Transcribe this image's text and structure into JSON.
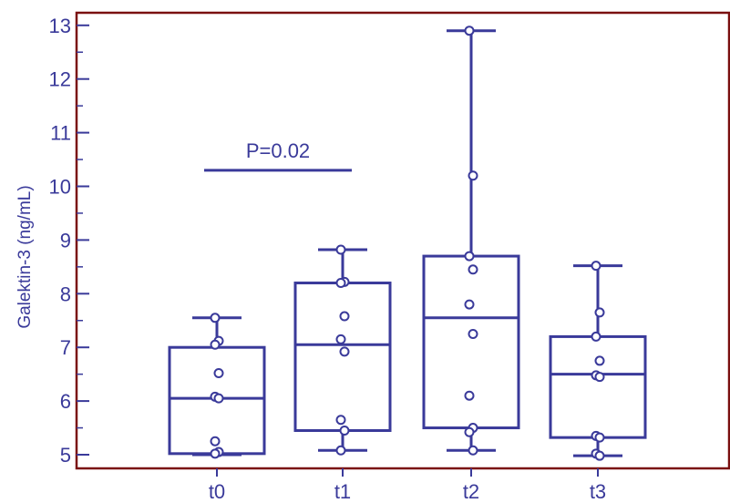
{
  "chart_data": {
    "type": "box",
    "ylabel": "Galektin-3 (ng/mL)",
    "xlabel": "",
    "ylim": [
      4.8,
      13.2
    ],
    "yticks": [
      5,
      6,
      7,
      8,
      9,
      10,
      11,
      12,
      13
    ],
    "categories": [
      "t0",
      "t1",
      "t2",
      "t3"
    ],
    "boxes": [
      {
        "category": "t0",
        "whisker_low": 5.0,
        "q1": 5.02,
        "median": 6.05,
        "q3": 7.0,
        "whisker_high": 7.55,
        "points": [
          7.55,
          7.12,
          7.05,
          6.52,
          6.08,
          6.05,
          5.25,
          5.05,
          5.02
        ]
      },
      {
        "category": "t1",
        "whisker_low": 5.08,
        "q1": 5.45,
        "median": 7.05,
        "q3": 8.2,
        "whisker_high": 8.82,
        "points": [
          8.82,
          8.22,
          8.2,
          7.58,
          7.15,
          6.92,
          5.65,
          5.45,
          5.08
        ]
      },
      {
        "category": "t2",
        "whisker_low": 5.08,
        "q1": 5.5,
        "median": 7.55,
        "q3": 8.7,
        "whisker_high": 12.9,
        "points": [
          12.9,
          10.2,
          8.7,
          8.45,
          7.8,
          7.25,
          6.1,
          5.5,
          5.42,
          5.08
        ]
      },
      {
        "category": "t3",
        "whisker_low": 4.98,
        "q1": 5.32,
        "median": 6.5,
        "q3": 7.2,
        "whisker_high": 8.52,
        "points": [
          8.52,
          7.65,
          7.2,
          6.75,
          6.48,
          6.45,
          5.35,
          5.32,
          5.02,
          4.98
        ]
      }
    ],
    "annotations": [
      {
        "text": "P=0.02",
        "y": 10.3,
        "from_category": "t0",
        "to_category": "t1"
      }
    ],
    "grid": false,
    "legend": "none",
    "colors": {
      "series": "#3a3a9a",
      "frame": "#7a1010",
      "background": "#ffffff"
    }
  }
}
